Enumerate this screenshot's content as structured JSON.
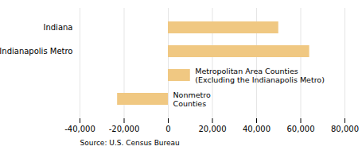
{
  "chart_data": {
    "type": "bar",
    "orientation": "horizontal",
    "categories": [
      null,
      null,
      "Indianapolis Metro",
      "Indiana"
    ],
    "values": [
      -23000,
      10000,
      64000,
      50000
    ],
    "color": "#F0C882",
    "xlim": [
      -40000,
      80000
    ],
    "xticks": [
      {
        "value": -40000,
        "label": "-40,000"
      },
      {
        "value": -20000,
        "label": "-20,000"
      },
      0,
      {
        "value": 20000,
        "label": "20,000"
      },
      {
        "value": 40000,
        "label": "40,000"
      },
      {
        "value": 60000,
        "label": "60,000"
      },
      {
        "value": 80000,
        "label": "80,000"
      }
    ],
    "grid": true,
    "annotations": [
      "Nonmetro\nCounties",
      "Metropolitan Area Counties\n(Excluding the Indianapolis Metro)"
    ],
    "caption": "Source: U.S. Census Bureau"
  }
}
